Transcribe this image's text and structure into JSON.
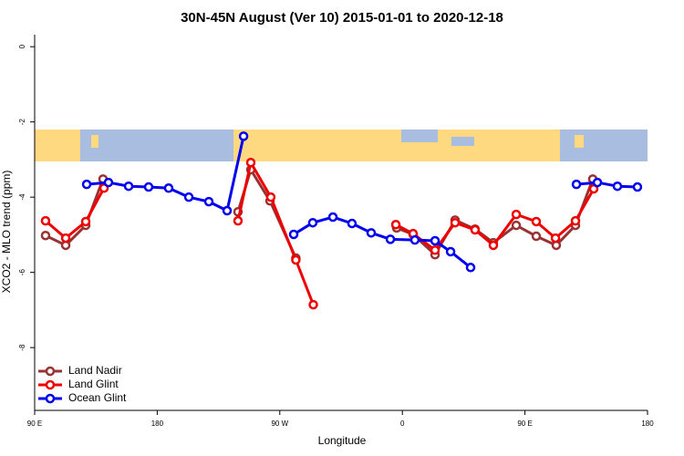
{
  "chart_data": {
    "type": "line",
    "title": "30N-45N August (Ver 10)   2015-01-01 to 2020-12-18",
    "x_label": "Longitude",
    "y_label": "XCO2 - MLO trend (ppm)",
    "xlim": [
      90,
      540
    ],
    "ylim": [
      -9.67,
      0.32
    ],
    "xticks": [
      {
        "value": 90,
        "label": "90 E"
      },
      180,
      {
        "value": 270,
        "label": "90 W"
      },
      {
        "value": 360,
        "label": "0"
      },
      {
        "value": 450,
        "label": "90 E"
      },
      {
        "value": 540,
        "label": "180"
      }
    ],
    "yticks": [
      0,
      -2,
      -4,
      -6,
      -8
    ],
    "legend": "bottom-left",
    "series": [
      {
        "name": "Land Nadir",
        "color": "#993333",
        "x": [
          98,
          112.8,
          127.5,
          140.2,
          null,
          239.3,
          248.7,
          262.8,
          281.8,
          null,
          355.8,
          367.9,
          384,
          398.7,
          413.4,
          426.8,
          443.6,
          458.3,
          473,
          487.1,
          499.8
        ],
        "values": [
          -5.02,
          -5.28,
          -4.75,
          -3.52,
          null,
          -4.39,
          -3.27,
          -4.1,
          -5.62,
          null,
          -4.82,
          -4.99,
          -5.53,
          -4.61,
          -4.85,
          -5.21,
          -4.75,
          -5.04,
          -5.28,
          -4.75,
          -3.52
        ]
      },
      {
        "name": "Land Glint",
        "color": "#ee0000",
        "x": [
          98,
          112.8,
          127.5,
          140.9,
          null,
          239.3,
          248.7,
          263.4,
          281.8,
          294.6,
          null,
          355.2,
          367.9,
          384,
          398.7,
          413.4,
          426.8,
          443.6,
          458.3,
          472.4,
          487.1,
          500.5
        ],
        "values": [
          -4.63,
          -5.09,
          -4.65,
          -3.76,
          null,
          -4.63,
          -3.08,
          -4.0,
          -5.67,
          -6.86,
          null,
          -4.73,
          -4.97,
          -5.41,
          -4.68,
          -4.87,
          -5.28,
          -4.46,
          -4.65,
          -5.09,
          -4.63,
          -3.78
        ]
      },
      {
        "name": "Ocean Glint",
        "color": "#0000ee",
        "x": [
          128.2,
          144.2,
          159,
          173.7,
          188.4,
          203.2,
          217.9,
          231.3,
          243.4,
          null,
          280.2,
          294.2,
          309,
          323,
          337.1,
          351.2,
          369.2,
          384,
          395.4,
          410.1,
          null,
          487.8,
          503.2,
          517.9,
          532.6
        ],
        "values": [
          -3.66,
          -3.61,
          -3.71,
          -3.73,
          -3.76,
          -4.0,
          -4.12,
          -4.36,
          -2.38,
          null,
          -4.99,
          -4.68,
          -4.53,
          -4.7,
          -4.95,
          -5.12,
          -5.14,
          -5.16,
          -5.45,
          -5.87,
          null,
          -3.66,
          -3.61,
          -3.71,
          -3.73
        ]
      }
    ]
  }
}
